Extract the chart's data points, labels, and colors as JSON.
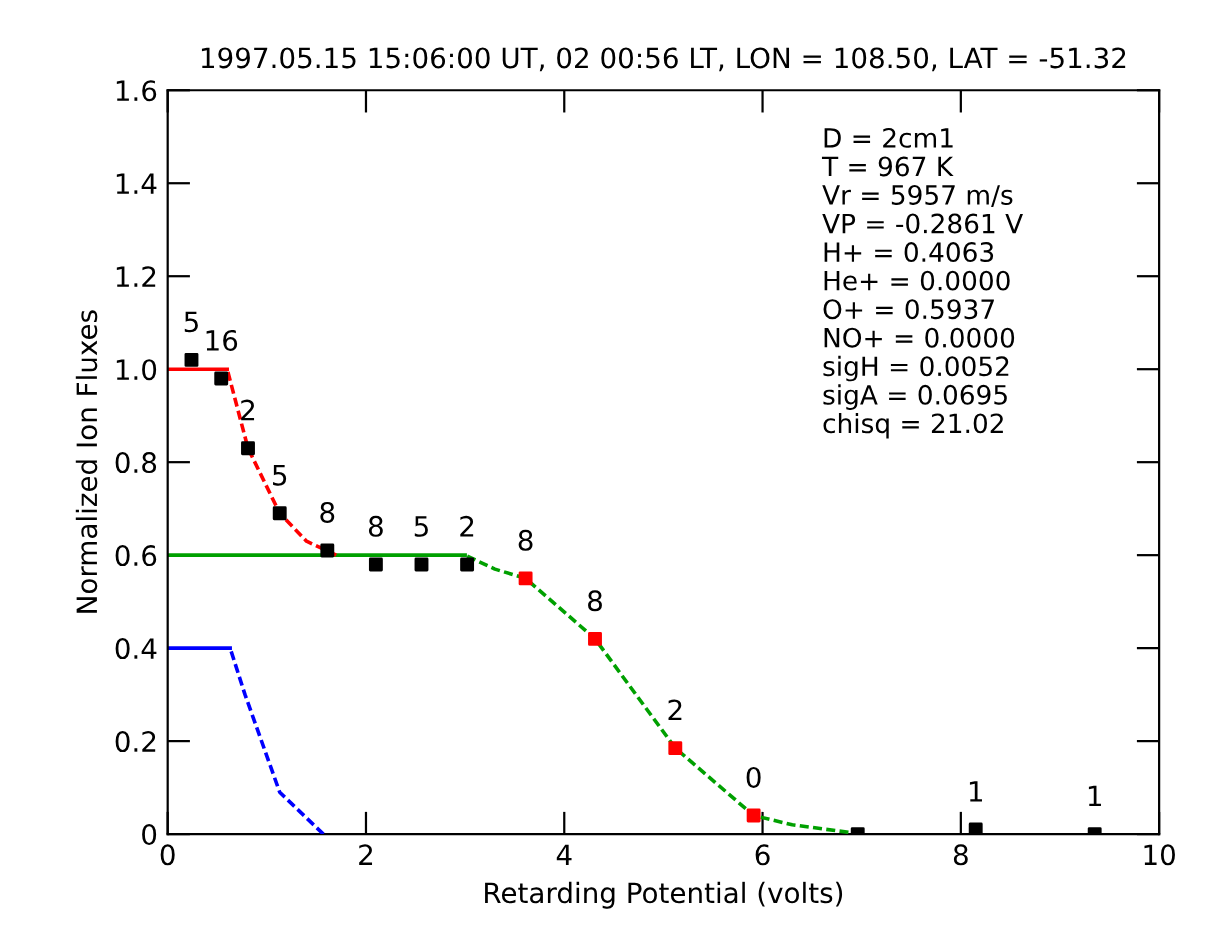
{
  "chart_data": {
    "type": "line",
    "title": "1997.05.15 15:06:00 UT, 02 00:56 LT, LON = 108.50, LAT = -51.32",
    "xlabel": "Retarding Potential (volts)",
    "ylabel": "Normalized Ion Fluxes",
    "xlim": [
      0,
      10
    ],
    "xticks": [
      0,
      2,
      4,
      6,
      8,
      10
    ],
    "ylim": [
      0,
      1.6
    ],
    "yticks": [
      0,
      0.2,
      0.4,
      0.6,
      0.8,
      {
        "value": 1.0,
        "label": "1.0"
      },
      1.2,
      1.4,
      1.6
    ],
    "grid": false,
    "legend": false,
    "series": [
      {
        "color": "#ff0000",
        "line_style": "solid",
        "marker": "none",
        "x": [
          0,
          0.6
        ],
        "values": [
          1.0,
          1.0
        ]
      },
      {
        "color": "#ff0000",
        "line_style": "dashed",
        "marker": "none",
        "x": [
          0.6,
          0.81,
          1.13,
          1.4,
          1.7
        ],
        "values": [
          1.0,
          0.83,
          0.69,
          0.63,
          0.6
        ]
      },
      {
        "color": "#00a000",
        "line_style": "solid",
        "marker": "none",
        "x": [
          0,
          3.0
        ],
        "values": [
          0.6,
          0.6
        ]
      },
      {
        "color": "#00a000",
        "line_style": "dashed",
        "marker": "none",
        "x": [
          3.0,
          3.3,
          3.61,
          4.31,
          5.12,
          5.91,
          6.3,
          7.0
        ],
        "values": [
          0.6,
          0.57,
          0.55,
          0.42,
          0.185,
          0.04,
          0.02,
          0.0
        ]
      },
      {
        "color": "#0000ff",
        "line_style": "solid",
        "marker": "none",
        "x": [
          0,
          0.63
        ],
        "values": [
          0.4,
          0.4
        ]
      },
      {
        "color": "#0000ff",
        "line_style": "dashed",
        "marker": "none",
        "x": [
          0.63,
          0.78,
          1.13,
          1.57
        ],
        "values": [
          0.4,
          0.3,
          0.09,
          0.0
        ]
      },
      {
        "type": "scatter",
        "marker": "square",
        "x": [
          0.24,
          0.54,
          0.81,
          1.13,
          1.61,
          2.1,
          2.56,
          3.02,
          3.61,
          4.31,
          5.12,
          5.91,
          6.96,
          8.15,
          9.35
        ],
        "values": [
          1.02,
          0.98,
          0.83,
          0.69,
          0.61,
          0.58,
          0.58,
          0.58,
          0.55,
          0.42,
          0.185,
          0.04,
          0.0,
          0.01,
          0.0
        ],
        "colors": [
          "#000000",
          "#000000",
          "#000000",
          "#000000",
          "#000000",
          "#000000",
          "#000000",
          "#000000",
          "#ff0000",
          "#ff0000",
          "#ff0000",
          "#ff0000",
          "#000000",
          "#000000",
          "#000000"
        ]
      }
    ],
    "annotations": [
      {
        "text": "5",
        "x": 0.24,
        "y": 1.02
      },
      {
        "text": "16",
        "x": 0.54,
        "y": 0.98
      },
      {
        "text": "2",
        "x": 0.81,
        "y": 0.83
      },
      {
        "text": "5",
        "x": 1.13,
        "y": 0.69
      },
      {
        "text": "8",
        "x": 1.61,
        "y": 0.61
      },
      {
        "text": "8",
        "x": 2.1,
        "y": 0.58
      },
      {
        "text": "5",
        "x": 2.56,
        "y": 0.58
      },
      {
        "text": "2",
        "x": 3.02,
        "y": 0.58
      },
      {
        "text": "8",
        "x": 3.61,
        "y": 0.55
      },
      {
        "text": "8",
        "x": 4.31,
        "y": 0.42
      },
      {
        "text": "2",
        "x": 5.12,
        "y": 0.185
      },
      {
        "text": "0",
        "x": 5.91,
        "y": 0.04
      },
      {
        "text": "1",
        "x": 8.15,
        "y": 0.01
      },
      {
        "text": "1",
        "x": 9.35,
        "y": 0.0
      },
      "D = 2cm1",
      "T = 967 K",
      "Vr = 5957 m/s",
      "VP = -0.2861 V",
      "H+ = 0.4063",
      "He+ = 0.0000",
      "O+ = 0.5937",
      "NO+ = 0.0000",
      "sigH = 0.0052",
      "sigA = 0.0695",
      "chisq = 21.02"
    ]
  }
}
